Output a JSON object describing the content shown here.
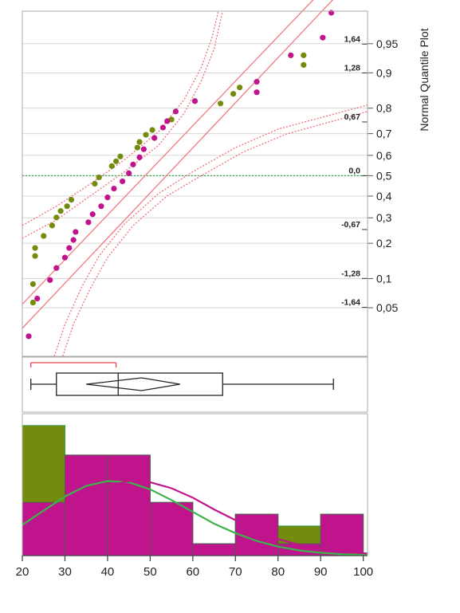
{
  "chart_data": {
    "type": "composite",
    "x_axis": {
      "ticks": [
        "20",
        "30",
        "40",
        "50",
        "60",
        "70",
        "80",
        "90",
        "100"
      ],
      "range": [
        20,
        101
      ]
    },
    "quantile_plot": {
      "type": "scatter",
      "axis_title": "Normal Quantile Plot",
      "prob_ticks": [
        {
          "label": "0,95",
          "p": 0.95
        },
        {
          "label": "0,9",
          "p": 0.9
        },
        {
          "label": "0,8",
          "p": 0.8
        },
        {
          "label": "0,7",
          "p": 0.7
        },
        {
          "label": "0,6",
          "p": 0.6
        },
        {
          "label": "0,5",
          "p": 0.5
        },
        {
          "label": "0,4",
          "p": 0.4
        },
        {
          "label": "0,3",
          "p": 0.3
        },
        {
          "label": "0,2",
          "p": 0.2
        },
        {
          "label": "0,1",
          "p": 0.1
        },
        {
          "label": "0,05",
          "p": 0.05
        }
      ],
      "z_labels": [
        {
          "label": "1,64",
          "z": 1.64
        },
        {
          "label": "1,28",
          "z": 1.28
        },
        {
          "label": "0,67",
          "z": 0.67
        },
        {
          "label": "0,0",
          "z": 0
        },
        {
          "label": "-0,67",
          "z": -0.67
        },
        {
          "label": "-1,28",
          "z": -1.28
        },
        {
          "label": "-1,64",
          "z": -1.64
        }
      ],
      "z_range": [
        -2.25,
        2.05
      ],
      "series": [
        {
          "color": "#738c0e",
          "points": [
            [
              22.5,
              -1.58
            ],
            [
              22.5,
              -1.35
            ],
            [
              23,
              -1.0
            ],
            [
              23,
              -0.9
            ],
            [
              25,
              -0.75
            ],
            [
              27,
              -0.62
            ],
            [
              28,
              -0.52
            ],
            [
              29,
              -0.44
            ],
            [
              30.5,
              -0.38
            ],
            [
              31.5,
              -0.3
            ],
            [
              37,
              -0.1
            ],
            [
              38,
              -0.02
            ],
            [
              41,
              0.12
            ],
            [
              42,
              0.18
            ],
            [
              43,
              0.24
            ],
            [
              47,
              0.35
            ],
            [
              47.5,
              0.42
            ],
            [
              49,
              0.51
            ],
            [
              50.5,
              0.57
            ],
            [
              55,
              0.7
            ],
            [
              66.5,
              0.9
            ],
            [
              69.5,
              1.02
            ],
            [
              71,
              1.1
            ],
            [
              86,
              1.38
            ],
            [
              86,
              1.5
            ]
          ]
        },
        {
          "color": "#c0148c",
          "points": [
            [
              21.5,
              -2.0
            ],
            [
              23.5,
              -1.53
            ],
            [
              26.5,
              -1.3
            ],
            [
              28,
              -1.15
            ],
            [
              30,
              -1.02
            ],
            [
              31,
              -0.9
            ],
            [
              32,
              -0.8
            ],
            [
              32.5,
              -0.7
            ],
            [
              35.5,
              -0.58
            ],
            [
              36.5,
              -0.48
            ],
            [
              38.5,
              -0.38
            ],
            [
              40,
              -0.27
            ],
            [
              41.5,
              -0.16
            ],
            [
              43.5,
              -0.07
            ],
            [
              45,
              0.03
            ],
            [
              46,
              0.14
            ],
            [
              47.5,
              0.23
            ],
            [
              48.5,
              0.33
            ],
            [
              51,
              0.47
            ],
            [
              53,
              0.6
            ],
            [
              54,
              0.68
            ],
            [
              56,
              0.8
            ],
            [
              60.5,
              0.93
            ],
            [
              75,
              1.04
            ],
            [
              75,
              1.17
            ],
            [
              83,
              1.5
            ],
            [
              90.5,
              1.72
            ],
            [
              92.5,
              2.03
            ],
            [
              92.5,
              2.3
            ]
          ]
        }
      ],
      "reference_lines": [
        [
          [
            20,
            -1.9
          ],
          [
            101,
            2.65
          ]
        ],
        [
          [
            20,
            -1.6
          ],
          [
            101,
            2.9
          ]
        ]
      ],
      "confidence_bands": [
        [
          [
            20,
            -0.62
          ],
          [
            28,
            -0.38
          ],
          [
            36,
            -0.1
          ],
          [
            44,
            0.2
          ],
          [
            52,
            0.55
          ],
          [
            58,
            0.95
          ],
          [
            62,
            1.35
          ],
          [
            64.5,
            1.72
          ],
          [
            66,
            2.05
          ]
        ],
        [
          [
            20,
            -0.78
          ],
          [
            28,
            -0.55
          ],
          [
            36,
            -0.25
          ],
          [
            44,
            0.05
          ],
          [
            52,
            0.38
          ],
          [
            58,
            0.78
          ],
          [
            62,
            1.18
          ],
          [
            65,
            1.58
          ],
          [
            67,
            2.05
          ]
        ],
        [
          [
            27.5,
            -2.25
          ],
          [
            30,
            -1.85
          ],
          [
            34,
            -1.38
          ],
          [
            38,
            -1.0
          ],
          [
            44,
            -0.6
          ],
          [
            52,
            -0.22
          ],
          [
            60,
            0.05
          ],
          [
            70,
            0.35
          ],
          [
            80,
            0.58
          ],
          [
            101,
            0.88
          ]
        ],
        [
          [
            29.5,
            -2.25
          ],
          [
            32,
            -1.85
          ],
          [
            36,
            -1.4
          ],
          [
            40,
            -1.02
          ],
          [
            46,
            -0.62
          ],
          [
            54,
            -0.25
          ],
          [
            62,
            0.0
          ],
          [
            72,
            0.3
          ],
          [
            82,
            0.52
          ],
          [
            101,
            0.8
          ]
        ]
      ]
    },
    "box_plot": {
      "type": "box",
      "min": 22,
      "q1": 28,
      "median": 42.5,
      "q3": 67,
      "max": 93,
      "mean_diamond": [
        35,
        48,
        57
      ],
      "shortest_half": [
        22,
        42
      ]
    },
    "histogram": {
      "type": "bar",
      "bin_edges": [
        20,
        30,
        40,
        50,
        60,
        70,
        80,
        90,
        100
      ],
      "count_range": [
        0,
        6.0
      ],
      "series": [
        {
          "color": "#738c0e",
          "values": [
            5.5,
            4.25,
            4.25,
            2.25,
            0.5,
            1.75,
            1.25,
            1.75
          ]
        },
        {
          "color": "#c0148c",
          "values": [
            2.25,
            4.25,
            4.25,
            2.25,
            0.5,
            1.75,
            0.5,
            1.75
          ]
        }
      ],
      "density_curves": [
        {
          "color": "#3cb44b",
          "points": [
            [
              20,
              1.3
            ],
            [
              25,
              1.9
            ],
            [
              30,
              2.5
            ],
            [
              35,
              2.95
            ],
            [
              40,
              3.15
            ],
            [
              45,
              3.1
            ],
            [
              50,
              2.8
            ],
            [
              55,
              2.35
            ],
            [
              60,
              1.85
            ],
            [
              65,
              1.35
            ],
            [
              70,
              0.95
            ],
            [
              75,
              0.62
            ],
            [
              80,
              0.38
            ],
            [
              85,
              0.22
            ],
            [
              90,
              0.12
            ],
            [
              95,
              0.06
            ],
            [
              101,
              0.03
            ]
          ]
        },
        {
          "color": "#c0148c",
          "points": [
            [
              20,
              1.1
            ],
            [
              25,
              1.55
            ],
            [
              30,
              2.1
            ],
            [
              35,
              2.6
            ],
            [
              40,
              2.95
            ],
            [
              45,
              3.15
            ],
            [
              50,
              3.1
            ],
            [
              55,
              2.85
            ],
            [
              60,
              2.45
            ],
            [
              65,
              1.95
            ],
            [
              70,
              1.5
            ],
            [
              75,
              1.05
            ],
            [
              80,
              0.7
            ],
            [
              85,
              0.45
            ],
            [
              90,
              0.28
            ],
            [
              95,
              0.16
            ],
            [
              101,
              0.09
            ]
          ]
        }
      ]
    }
  }
}
